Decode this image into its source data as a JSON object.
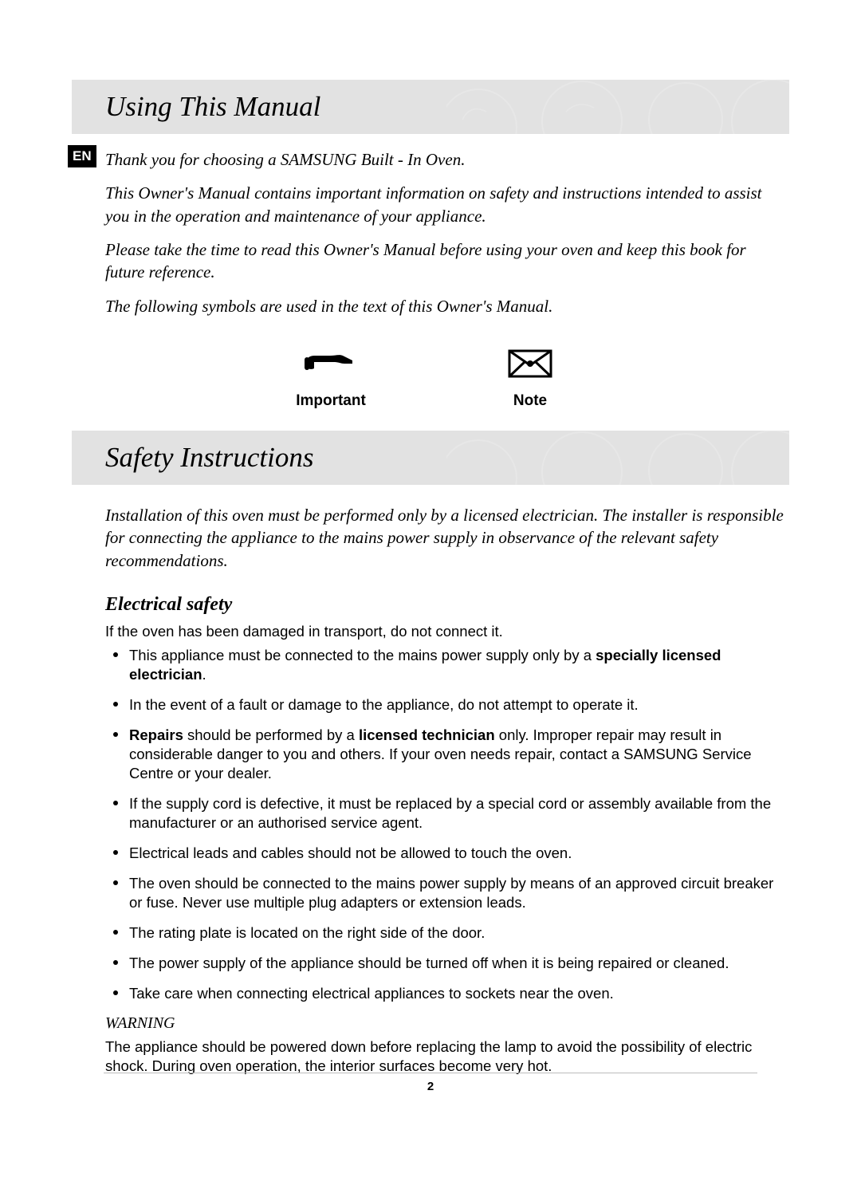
{
  "lang_badge": "EN",
  "section1": {
    "title": "Using This Manual",
    "paragraphs": [
      "Thank you for choosing a SAMSUNG Built - In Oven.",
      "This Owner's Manual contains important information on safety and instructions intended to assist you in the operation and maintenance of your appliance.",
      "Please take the time to read this Owner's Manual before using your oven and keep this book for future reference.",
      "The following symbols are used in the text of this Owner's Manual."
    ]
  },
  "symbols": {
    "important": {
      "label": "Important",
      "icon": "pointing-hand-icon"
    },
    "note": {
      "label": "Note",
      "icon": "envelope-icon"
    }
  },
  "section2": {
    "title": "Safety Instructions",
    "intro": "Installation of this oven must be performed only by a licensed electrician. The installer is responsible for connecting the appliance to the mains power supply in observance of the relevant safety recommendations.",
    "electrical": {
      "heading": "Electrical safety",
      "lead": "If the oven has been damaged in transport, do not connect it.",
      "bullets_html": [
        "This appliance must be connected to the mains power supply only by a <b>specially licensed electrician</b>.",
        "In the event of a fault or damage to the appliance, do not attempt to operate it.",
        "<b>Repairs</b> should be performed by a <b>licensed technician</b> only. Improper repair may result in considerable danger to you and others. If your oven needs repair, contact a SAMSUNG Service Centre or your dealer.",
        "If the supply cord is defective, it must be replaced by a special cord or assembly available from the manufacturer or an authorised service agent.",
        "Electrical leads and cables should not be allowed to touch the oven.",
        "The oven should be connected to the mains power supply by means of an approved circuit breaker or fuse. Never use multiple plug adapters or extension leads.",
        "The rating plate is located on the right side of the door.",
        "The power supply of the appliance should be turned off when it is being repaired or cleaned.",
        "Take care when connecting electrical appliances to sockets near the oven."
      ]
    },
    "warning": {
      "label": "WARNING",
      "text": "The appliance should be powered down before replacing the lamp to avoid the possibility of electric shock. During oven operation, the interior surfaces become very hot."
    }
  },
  "page_number": "2",
  "colors": {
    "heading_bg": "#e2e2e2",
    "badge_bg": "#000000",
    "badge_fg": "#ffffff",
    "text": "#000000"
  }
}
